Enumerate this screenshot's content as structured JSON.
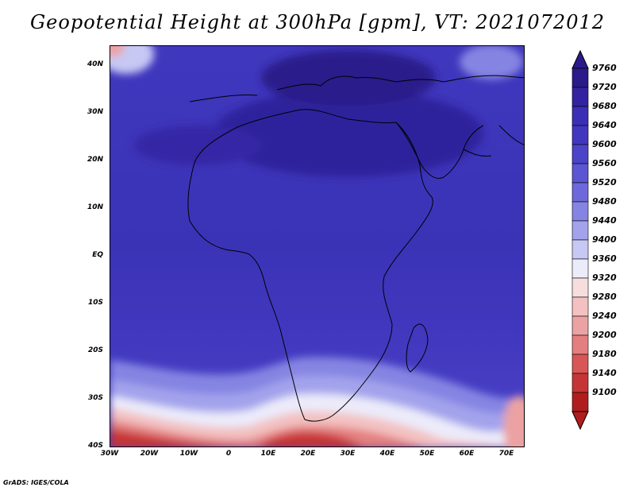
{
  "title": "Geopotential Height at 300hPa [gpm], VT: 2021072012",
  "footer": "GrADS: IGES/COLA",
  "map": {
    "lat_labels": [
      "40N",
      "30N",
      "20N",
      "10N",
      "EQ",
      "10S",
      "20S",
      "30S",
      "40S"
    ],
    "lon_labels": [
      "30W",
      "20W",
      "10W",
      "0",
      "10E",
      "20E",
      "30E",
      "40E",
      "50E",
      "60E",
      "70E"
    ],
    "extent": {
      "lon": [
        -30,
        75
      ],
      "lat": [
        -40,
        45
      ]
    }
  },
  "colorbar": {
    "levels": [
      "9760",
      "9720",
      "9680",
      "9640",
      "9600",
      "9560",
      "9520",
      "9480",
      "9440",
      "9400",
      "9360",
      "9320",
      "9280",
      "9240",
      "9200",
      "9180",
      "9140",
      "9100"
    ],
    "colors_top_to_bottom": [
      "#2a1a8a",
      "#3323a0",
      "#3a2fb4",
      "#4137be",
      "#4b43c8",
      "#5b56d2",
      "#6d69da",
      "#8584e2",
      "#a3a3ec",
      "#c7c8f4",
      "#ecebfa",
      "#f7dede",
      "#f3c1c1",
      "#eca2a2",
      "#e47f7f",
      "#d85656",
      "#c63535",
      "#b11d1d"
    ]
  }
}
